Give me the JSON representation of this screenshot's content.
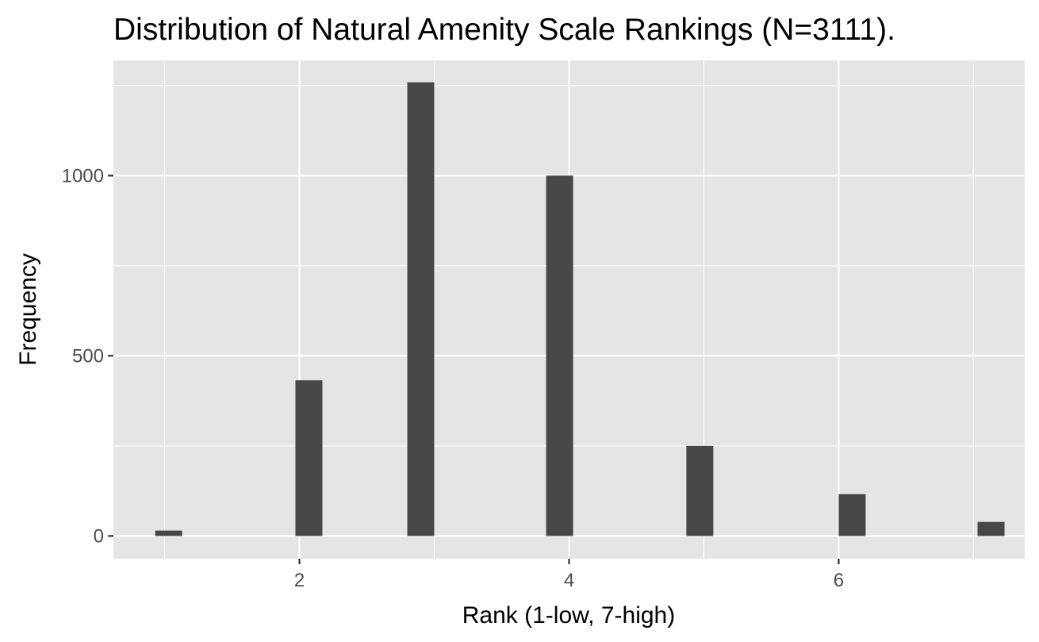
{
  "chart_data": {
    "type": "histogram",
    "title": "Distribution of Natural Amenity Scale Rankings (N=3111).",
    "xlabel": "Rank (1-low, 7-high)",
    "ylabel": "Frequency",
    "xlim": [
      0.62,
      7.38
    ],
    "ylim": [
      -63,
      1320
    ],
    "x_major_ticks": [
      2,
      4,
      6
    ],
    "x_minor_ticks": [
      1,
      3,
      5,
      7
    ],
    "y_major_ticks": [
      0,
      500,
      1000
    ],
    "y_minor_ticks": [
      250,
      750,
      1250
    ],
    "bin_width": 0.2,
    "bins": [
      {
        "center": 1.03,
        "count": 15
      },
      {
        "center": 2.07,
        "count": 432
      },
      {
        "center": 2.9,
        "count": 1259
      },
      {
        "center": 3.93,
        "count": 1000
      },
      {
        "center": 4.97,
        "count": 250
      },
      {
        "center": 6.1,
        "count": 116
      },
      {
        "center": 7.13,
        "count": 39
      }
    ],
    "colors": {
      "panel_background": "#e5e5e5",
      "grid": "#ffffff",
      "bar_fill": "#474747",
      "tick_label": "#4d4d4d",
      "text": "#000000"
    },
    "grid": true,
    "legend": "none"
  }
}
